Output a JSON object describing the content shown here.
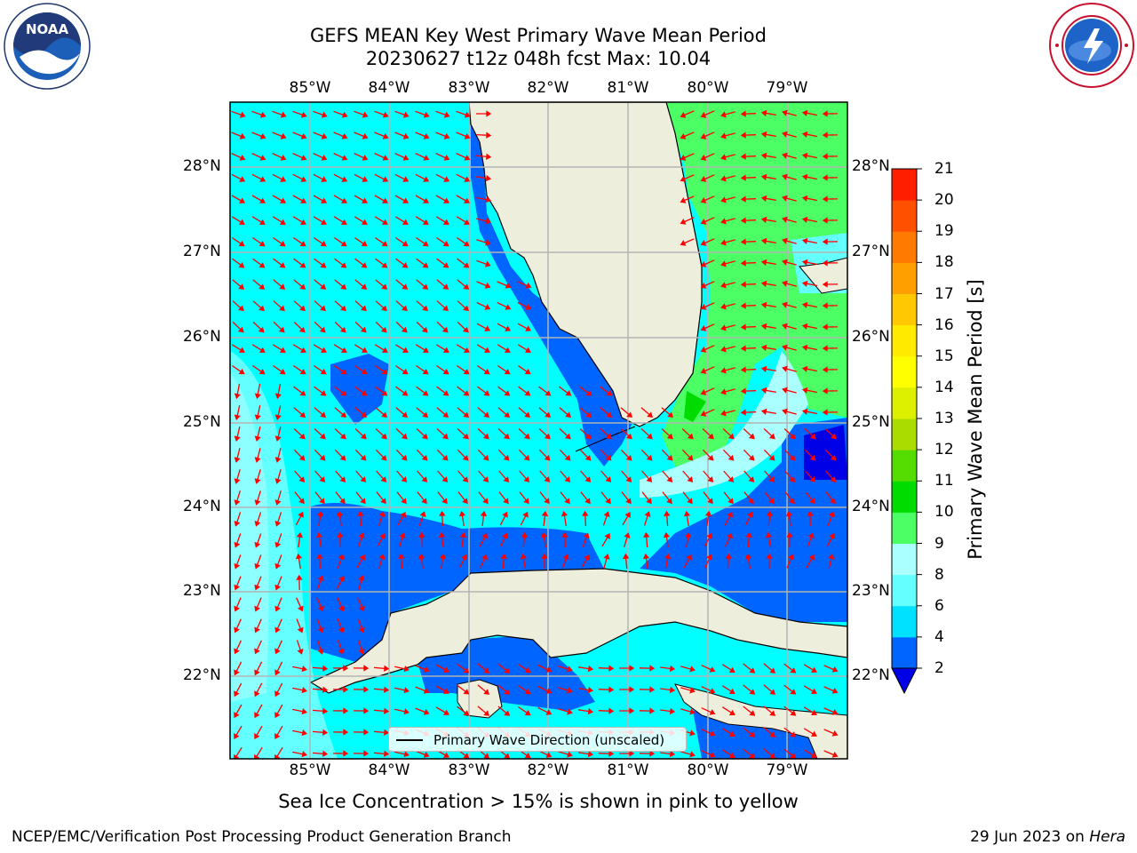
{
  "title_line1": "GEFS MEAN Key West Primary Wave Mean Period",
  "title_line2": "20230627 t12z 048h fcst   Max: 10.04",
  "lon_labels": [
    "85°W",
    "84°W",
    "83°W",
    "82°W",
    "81°W",
    "80°W",
    "79°W"
  ],
  "lat_labels": [
    "28°N",
    "27°N",
    "26°N",
    "25°N",
    "24°N",
    "23°N",
    "22°N"
  ],
  "colorbar": {
    "label": "Primary Wave Mean Period [s]",
    "ticks": [
      "2",
      "4",
      "6",
      "8",
      "9",
      "10",
      "11",
      "12",
      "13",
      "14",
      "15",
      "16",
      "17",
      "18",
      "19",
      "20",
      "21"
    ],
    "colors": [
      "#0064ff",
      "#00e1ff",
      "#64ffff",
      "#aaffff",
      "#4bff64",
      "#00dc00",
      "#55dc00",
      "#aadc00",
      "#dcf000",
      "#ffff00",
      "#ffea00",
      "#ffc800",
      "#ffa000",
      "#ff7a00",
      "#ff5000",
      "#ff1e00"
    ],
    "under_color": "#0000e6"
  },
  "legend_text": "Primary Wave Direction (unscaled)",
  "caption": "Sea Ice Concentration > 15% is shown in pink to yellow",
  "footer_left": "NCEP/EMC/Verification Post Processing Product Generation Branch",
  "footer_right_date": "29 Jun 2023 on",
  "footer_right_host": "Hera",
  "map_colors": {
    "land": "#eeeedc",
    "arrow": "#ff0000",
    "grid": "#b4b4b4"
  },
  "logos": [
    "noaa-logo",
    "nws-logo"
  ]
}
